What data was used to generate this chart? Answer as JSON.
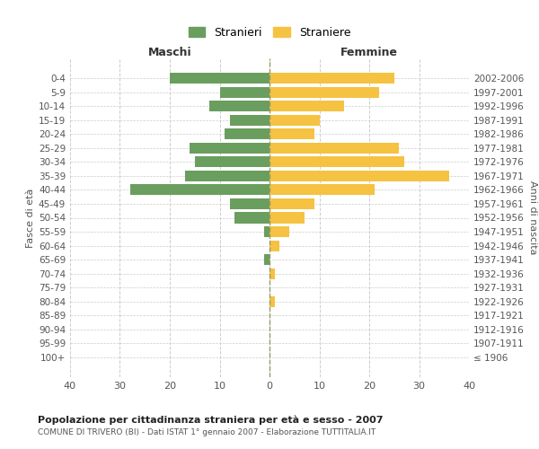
{
  "age_groups": [
    "100+",
    "95-99",
    "90-94",
    "85-89",
    "80-84",
    "75-79",
    "70-74",
    "65-69",
    "60-64",
    "55-59",
    "50-54",
    "45-49",
    "40-44",
    "35-39",
    "30-34",
    "25-29",
    "20-24",
    "15-19",
    "10-14",
    "5-9",
    "0-4"
  ],
  "birth_years": [
    "≤ 1906",
    "1907-1911",
    "1912-1916",
    "1917-1921",
    "1922-1926",
    "1927-1931",
    "1932-1936",
    "1937-1941",
    "1942-1946",
    "1947-1951",
    "1952-1956",
    "1957-1961",
    "1962-1966",
    "1967-1971",
    "1972-1976",
    "1977-1981",
    "1982-1986",
    "1987-1991",
    "1992-1996",
    "1997-2001",
    "2002-2006"
  ],
  "maschi": [
    0,
    0,
    0,
    0,
    0,
    0,
    0,
    1,
    0,
    1,
    7,
    8,
    28,
    17,
    15,
    16,
    9,
    8,
    12,
    10,
    20
  ],
  "femmine": [
    0,
    0,
    0,
    0,
    1,
    0,
    1,
    0,
    2,
    4,
    7,
    9,
    21,
    36,
    27,
    26,
    9,
    10,
    15,
    22,
    25
  ],
  "male_color": "#6a9e5e",
  "female_color": "#f5c242",
  "grid_color": "#cccccc",
  "title": "Popolazione per cittadinanza straniera per età e sesso - 2007",
  "subtitle": "COMUNE DI TRIVERO (BI) - Dati ISTAT 1° gennaio 2007 - Elaborazione TUTTITALIA.IT",
  "ylabel_left": "Fasce di età",
  "ylabel_right": "Anni di nascita",
  "xlabel_maschi": "Maschi",
  "xlabel_femmine": "Femmine",
  "legend_maschi": "Stranieri",
  "legend_femmine": "Straniere",
  "xlim": 40,
  "xticks": [
    -40,
    -30,
    -20,
    -10,
    0,
    10,
    20,
    30,
    40
  ],
  "xtick_labels": [
    "40",
    "30",
    "20",
    "10",
    "0",
    "10",
    "20",
    "30",
    "40"
  ]
}
